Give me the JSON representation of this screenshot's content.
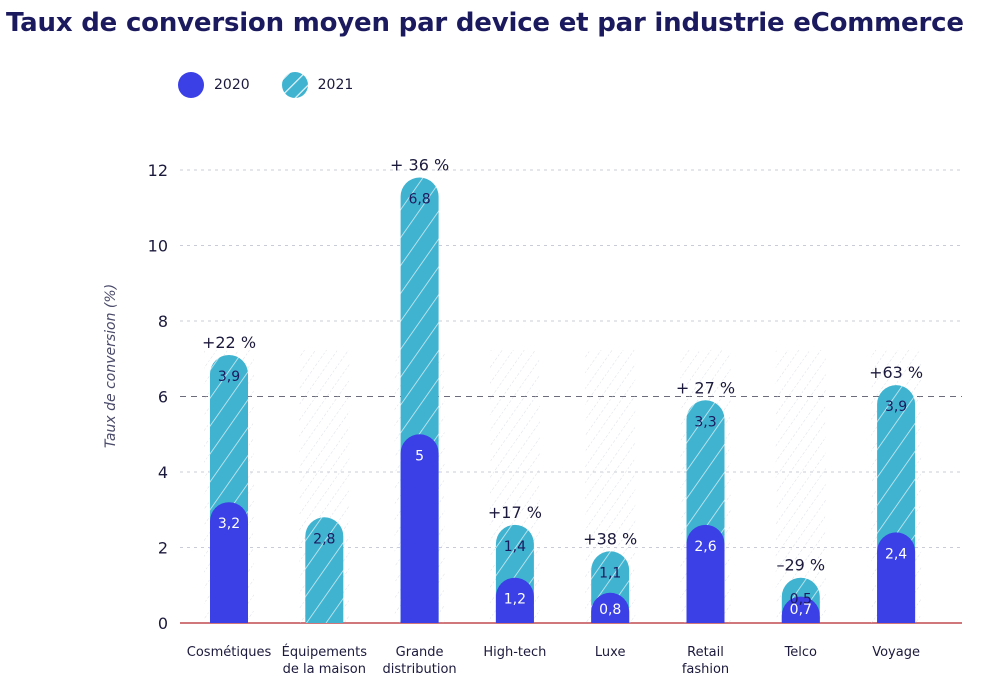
{
  "chart_data": {
    "type": "bar",
    "title": "Taux de conversion moyen par device et par industrie eCommerce",
    "ylabel": "Taux de conversion (%)",
    "xlabel": "",
    "ylim": [
      0,
      12
    ],
    "yticks": [
      "0",
      "2",
      "4",
      "6",
      "8",
      "10",
      "12"
    ],
    "grid": true,
    "legend_position": "top-left",
    "categories": [
      [
        "Cosmétiques"
      ],
      [
        "Équipements",
        "de la maison"
      ],
      [
        "Grande",
        "distribution"
      ],
      [
        "High-tech"
      ],
      [
        "Luxe"
      ],
      [
        "Retail",
        "fashion"
      ],
      [
        "Telco"
      ],
      [
        "Voyage"
      ]
    ],
    "series": [
      {
        "name": "2020",
        "color": "#3a3fe6",
        "values": [
          3.2,
          null,
          5,
          1.2,
          0.8,
          2.6,
          0.7,
          2.4
        ],
        "labels": [
          "3,2",
          "",
          "5",
          "1,2",
          "0,8",
          "2,6",
          "0,7",
          "2,4"
        ]
      },
      {
        "name": "2021",
        "color": "#3fb3d0",
        "values": [
          3.9,
          2.8,
          6.8,
          1.4,
          1.1,
          3.3,
          0.5,
          3.9
        ],
        "labels": [
          "3,9",
          "2,8",
          "6,8",
          "1,4",
          "1,1",
          "3,3",
          "0,5",
          "3,9"
        ]
      }
    ],
    "annotations": [
      "+22 %",
      "",
      "+ 36 %",
      "+17 %",
      "+38 %",
      "+ 27 %",
      "–29 %",
      "+63 %"
    ]
  }
}
